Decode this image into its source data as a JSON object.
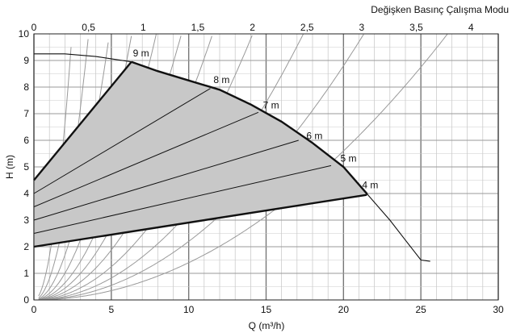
{
  "chart_data": {
    "type": "line",
    "title": "Değişken Basınç Çalışma Modu",
    "xlabel": "Q (m³/h)",
    "ylabel": "H (m)",
    "xlim": [
      0,
      30
    ],
    "ylim": [
      0,
      10
    ],
    "x2lim": [
      0,
      4.25
    ],
    "x_ticks": [
      "0",
      "5",
      "10",
      "15",
      "20",
      "25",
      "30"
    ],
    "y_ticks": [
      "0",
      "1",
      "2",
      "3",
      "4",
      "5",
      "6",
      "7",
      "8",
      "9",
      "10"
    ],
    "x2_ticks": [
      "0",
      "0,5",
      "1",
      "1,5",
      "2",
      "2,5",
      "3",
      "3,5",
      "4"
    ],
    "grid": true,
    "region_color": "#c8c8c8",
    "max_curve": {
      "name": "",
      "points": [
        [
          0,
          9.25
        ],
        [
          2,
          9.25
        ],
        [
          4,
          9.15
        ],
        [
          6.3,
          8.95
        ],
        [
          8,
          8.6
        ],
        [
          10,
          8.25
        ],
        [
          12,
          7.9
        ],
        [
          14,
          7.35
        ],
        [
          16,
          6.7
        ],
        [
          18,
          5.9
        ],
        [
          20,
          5.0
        ],
        [
          21.5,
          4.0
        ],
        [
          23,
          3.0
        ],
        [
          24,
          2.25
        ],
        [
          25,
          1.5
        ],
        [
          25.6,
          1.45
        ]
      ]
    },
    "operating_region": {
      "upper_left": [
        [
          0,
          4.5
        ],
        [
          6.3,
          8.95
        ]
      ],
      "bottom": [
        [
          0,
          2.0
        ],
        [
          21.5,
          3.95
        ]
      ]
    },
    "pressure_lines": [
      {
        "label": "9 m",
        "end": [
          6.3,
          8.95
        ],
        "label_pos": [
          6.4,
          9.15
        ]
      },
      {
        "label": "8 m",
        "end": [
          11.4,
          7.95
        ],
        "label_pos": [
          11.6,
          8.15
        ]
      },
      {
        "label": "7 m",
        "end": [
          14.5,
          7.05
        ],
        "label_pos": [
          14.8,
          7.2
        ]
      },
      {
        "label": "6 m",
        "end": [
          17.1,
          6.0
        ],
        "label_pos": [
          17.6,
          6.05
        ]
      },
      {
        "label": "5 m",
        "end": [
          19.2,
          5.05
        ],
        "label_pos": [
          19.8,
          5.2
        ]
      },
      {
        "label": "4 m",
        "end": [
          21.5,
          3.95
        ],
        "label_pos": [
          21.2,
          4.2
        ]
      }
    ],
    "pressure_line_starts": [
      4.5,
      4.0,
      3.5,
      3.0,
      2.5,
      2.0
    ],
    "system_curves_k": [
      1.65,
      0.8,
      0.42,
      0.25,
      0.16,
      0.11,
      0.075,
      0.05,
      0.033,
      0.022,
      0.014
    ]
  }
}
